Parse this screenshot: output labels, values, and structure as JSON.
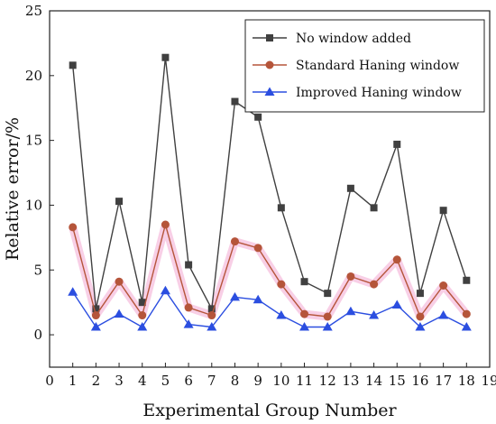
{
  "chart_data": {
    "type": "line",
    "xlabel": "Experimental Group Number",
    "ylabel": "Relative error/%",
    "xlim": [
      0,
      19
    ],
    "ylim": [
      -2.5,
      25
    ],
    "x_ticks": [
      0,
      1,
      2,
      3,
      4,
      5,
      6,
      7,
      8,
      9,
      10,
      11,
      12,
      13,
      14,
      15,
      16,
      17,
      18,
      19
    ],
    "y_ticks": [
      0,
      5,
      10,
      15,
      20,
      25
    ],
    "grid": false,
    "legend_position": "top-right",
    "x": [
      1,
      2,
      3,
      4,
      5,
      6,
      7,
      8,
      9,
      10,
      11,
      12,
      13,
      14,
      15,
      16,
      17,
      18
    ],
    "series": [
      {
        "name": "No window added",
        "color": "#404040",
        "marker": "square",
        "values": [
          20.8,
          2.0,
          10.3,
          2.5,
          21.4,
          5.4,
          2.0,
          18.0,
          16.8,
          9.8,
          4.1,
          3.2,
          11.3,
          9.8,
          14.7,
          3.2,
          9.6,
          4.2
        ]
      },
      {
        "name": "Standard Haning window",
        "color": "#b5553a",
        "marker": "circle",
        "values": [
          8.3,
          1.5,
          4.1,
          1.5,
          8.5,
          2.1,
          1.5,
          7.2,
          6.7,
          3.9,
          1.6,
          1.4,
          4.5,
          3.9,
          5.8,
          1.4,
          3.8,
          1.6
        ]
      },
      {
        "name": "Improved Haning window",
        "color": "#2b4ee0",
        "marker": "triangle",
        "values": [
          3.3,
          0.6,
          1.6,
          0.6,
          3.4,
          0.8,
          0.6,
          2.9,
          2.7,
          1.5,
          0.6,
          0.6,
          1.8,
          1.5,
          2.3,
          0.6,
          1.5,
          0.6
        ]
      }
    ]
  }
}
